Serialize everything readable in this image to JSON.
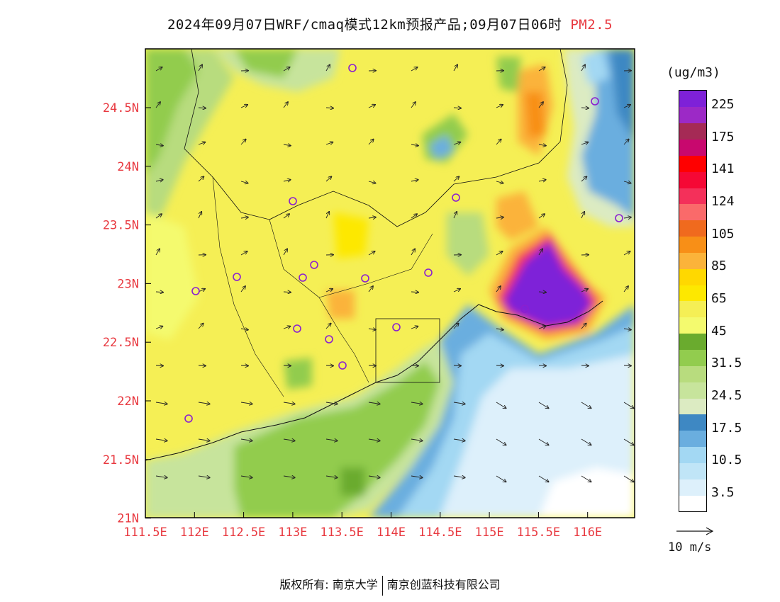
{
  "header": {
    "title": "2024年09月07日WRF/cmaq模式12km预报产品;09月07日06时",
    "variable": "PM2.5"
  },
  "map": {
    "lat_labels": [
      "24.5N",
      "24N",
      "23.5N",
      "23N",
      "22.5N",
      "22N",
      "21.5N",
      "21N"
    ],
    "lon_labels": [
      "111.5E",
      "112E",
      "112.5E",
      "113E",
      "113.5E",
      "114E",
      "114.5E",
      "115E",
      "115.5E",
      "116E"
    ]
  },
  "legend": {
    "unit": "(ug/m3)",
    "colors": [
      "#ffffff",
      "#ddf0fb",
      "#c0e5f7",
      "#a3d8f3",
      "#6aaedf",
      "#3e88c3",
      "#dcebc2",
      "#c7e49c",
      "#b8dc7e",
      "#92cc4e",
      "#6aab2e",
      "#f4fa6e",
      "#f5ef55",
      "#fde800",
      "#ffd800",
      "#fbb33a",
      "#f88f17",
      "#f06a1e",
      "#fa6a6a",
      "#f4305a",
      "#f50835",
      "#ff0000",
      "#c8086e",
      "#a52a55",
      "#9c29c6",
      "#7e21d8"
    ],
    "labels": [
      "3.5",
      "10.5",
      "17.5",
      "24.5",
      "31.5",
      "45",
      "65",
      "85",
      "105",
      "124",
      "141",
      "175",
      "225"
    ],
    "ref_vector": "10 m/s"
  },
  "footer": {
    "left": "版权所有: 南京大学",
    "right": "南京创蓝科技有限公司"
  }
}
